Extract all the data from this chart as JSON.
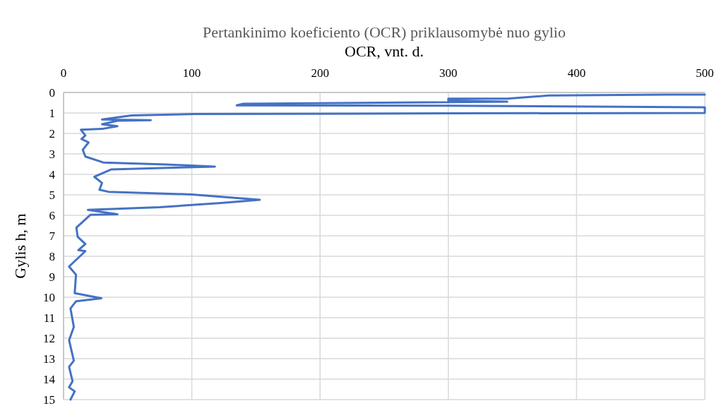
{
  "chart_data": {
    "type": "line",
    "title": "Pertankinimo koeficiento (OCR) priklausomybė nuo gylio",
    "xlabel": "OCR, vnt. d.",
    "ylabel": "Gylis h, m",
    "xlim": [
      0,
      500
    ],
    "xticks": [
      0,
      100,
      200,
      300,
      400,
      500
    ],
    "ylim": [
      15,
      0
    ],
    "yticks": [
      0,
      1,
      2,
      3,
      4,
      5,
      6,
      7,
      8,
      9,
      10,
      11,
      12,
      13,
      14,
      15
    ],
    "grid": true,
    "marker": "none",
    "line_style": "solid",
    "series": [
      {
        "color": "#4472c4",
        "x": [
          500,
          471,
          378,
          346,
          300,
          300,
          346,
          140,
          135,
          300,
          500,
          500,
          300,
          102,
          53,
          30,
          68,
          42,
          30,
          42,
          30,
          13.5,
          17,
          14,
          19.5,
          15,
          17,
          31,
          80,
          118,
          37,
          24,
          30,
          28,
          35,
          100,
          153,
          123,
          75,
          19,
          42,
          21,
          13.5,
          10,
          11,
          17,
          11.5,
          17,
          4.3,
          9.7,
          8.7,
          29.5,
          9.7,
          5.4,
          8,
          4.3,
          8,
          4.3,
          7,
          4.3,
          8.7,
          5.4
        ],
        "values": [
          0.1,
          0.1,
          0.15,
          0.3,
          0.3,
          0.4,
          0.45,
          0.55,
          0.63,
          0.65,
          0.72,
          1.0,
          1.02,
          1.05,
          1.12,
          1.32,
          1.35,
          1.38,
          1.55,
          1.65,
          1.78,
          1.82,
          2.1,
          2.27,
          2.44,
          2.8,
          3.13,
          3.42,
          3.52,
          3.62,
          3.76,
          4.12,
          4.42,
          4.75,
          4.85,
          4.98,
          5.24,
          5.4,
          5.6,
          5.73,
          5.95,
          5.97,
          6.4,
          6.6,
          7.05,
          7.4,
          7.7,
          7.75,
          8.5,
          8.9,
          9.8,
          10.05,
          10.2,
          10.55,
          11.45,
          12.1,
          13.1,
          13.4,
          14.1,
          14.4,
          14.6,
          15
        ]
      }
    ]
  }
}
